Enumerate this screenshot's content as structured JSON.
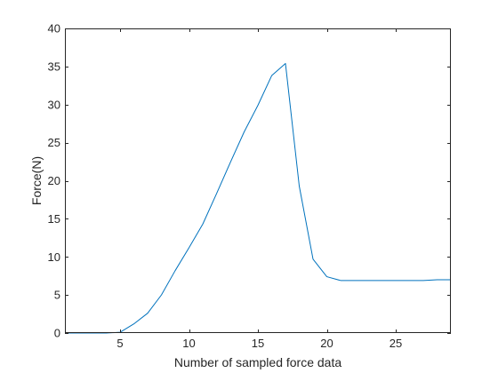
{
  "chart_data": {
    "type": "line",
    "title": "",
    "xlabel": "Number of sampled force data",
    "ylabel": "Force(N)",
    "xlim": [
      1,
      29
    ],
    "ylim": [
      0,
      40
    ],
    "xticks": [
      5,
      10,
      15,
      20,
      25
    ],
    "yticks": [
      0,
      5,
      10,
      15,
      20,
      25,
      30,
      35,
      40
    ],
    "grid": false,
    "legend": "none",
    "box": true,
    "colors": {
      "axis": "#262626",
      "line": "#0072bd",
      "background": "#ffffff"
    },
    "series": [
      {
        "x": [
          1,
          2,
          3,
          4,
          5,
          6,
          7,
          8,
          9,
          10,
          11,
          12,
          13,
          14,
          15,
          16,
          17,
          18,
          19,
          20,
          21,
          22,
          23,
          24,
          25,
          26,
          27,
          28,
          29
        ],
        "values": [
          0.0,
          0.0,
          0.0,
          0.0,
          0.1,
          1.2,
          2.6,
          5.0,
          8.2,
          11.2,
          14.3,
          18.3,
          22.4,
          26.4,
          29.9,
          33.8,
          35.4,
          19.3,
          9.7,
          7.4,
          6.9,
          6.9,
          6.9,
          6.9,
          6.9,
          6.9,
          6.9,
          7.0,
          7.0
        ]
      }
    ]
  }
}
